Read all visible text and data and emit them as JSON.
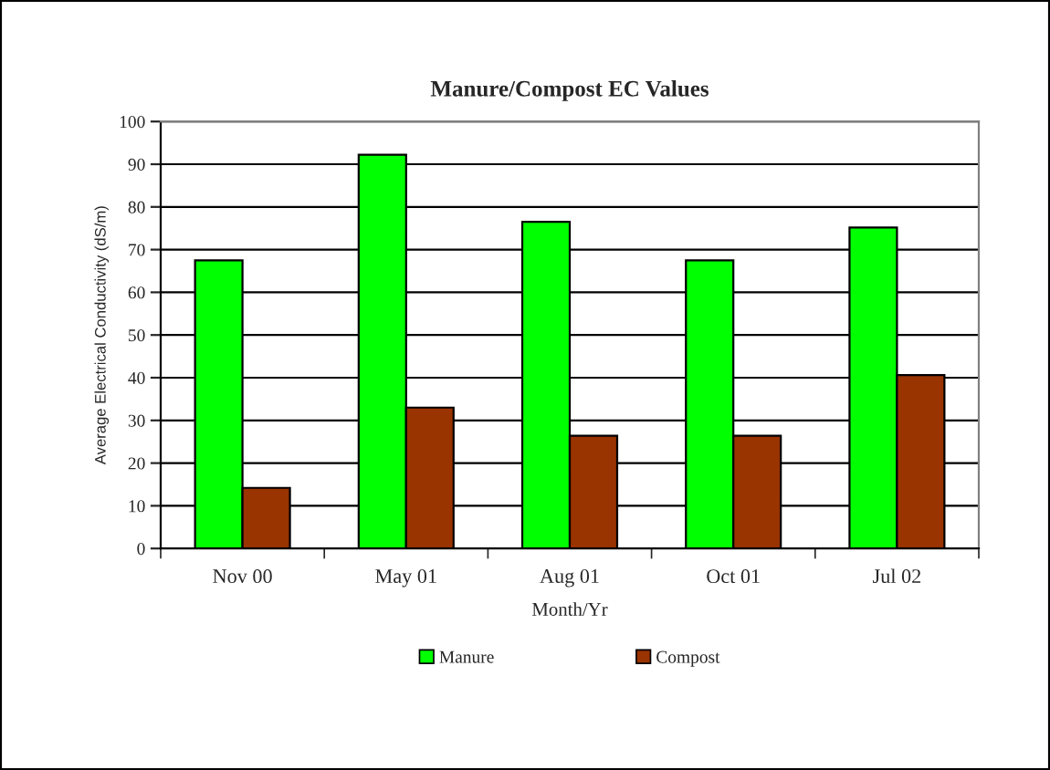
{
  "chart_data": {
    "type": "bar",
    "title": "Manure/Compost EC Values",
    "xlabel": "Month/Yr",
    "ylabel": "Average Electrical Conductivity (dS/m)",
    "categories": [
      "Nov 00",
      "May 01",
      "Aug 01",
      "Oct 01",
      "Jul 02"
    ],
    "series": [
      {
        "name": "Manure",
        "color": "#00ff00",
        "values": [
          67.5,
          92.2,
          76.5,
          67.5,
          75.2
        ]
      },
      {
        "name": "Compost",
        "color": "#993300",
        "values": [
          14.2,
          33,
          26.4,
          26.4,
          40.6
        ]
      }
    ],
    "ylim": [
      0,
      100
    ],
    "yticks": [
      0,
      10,
      20,
      30,
      40,
      50,
      60,
      70,
      80,
      90,
      100
    ],
    "grid": "y",
    "legend": "bottom"
  }
}
